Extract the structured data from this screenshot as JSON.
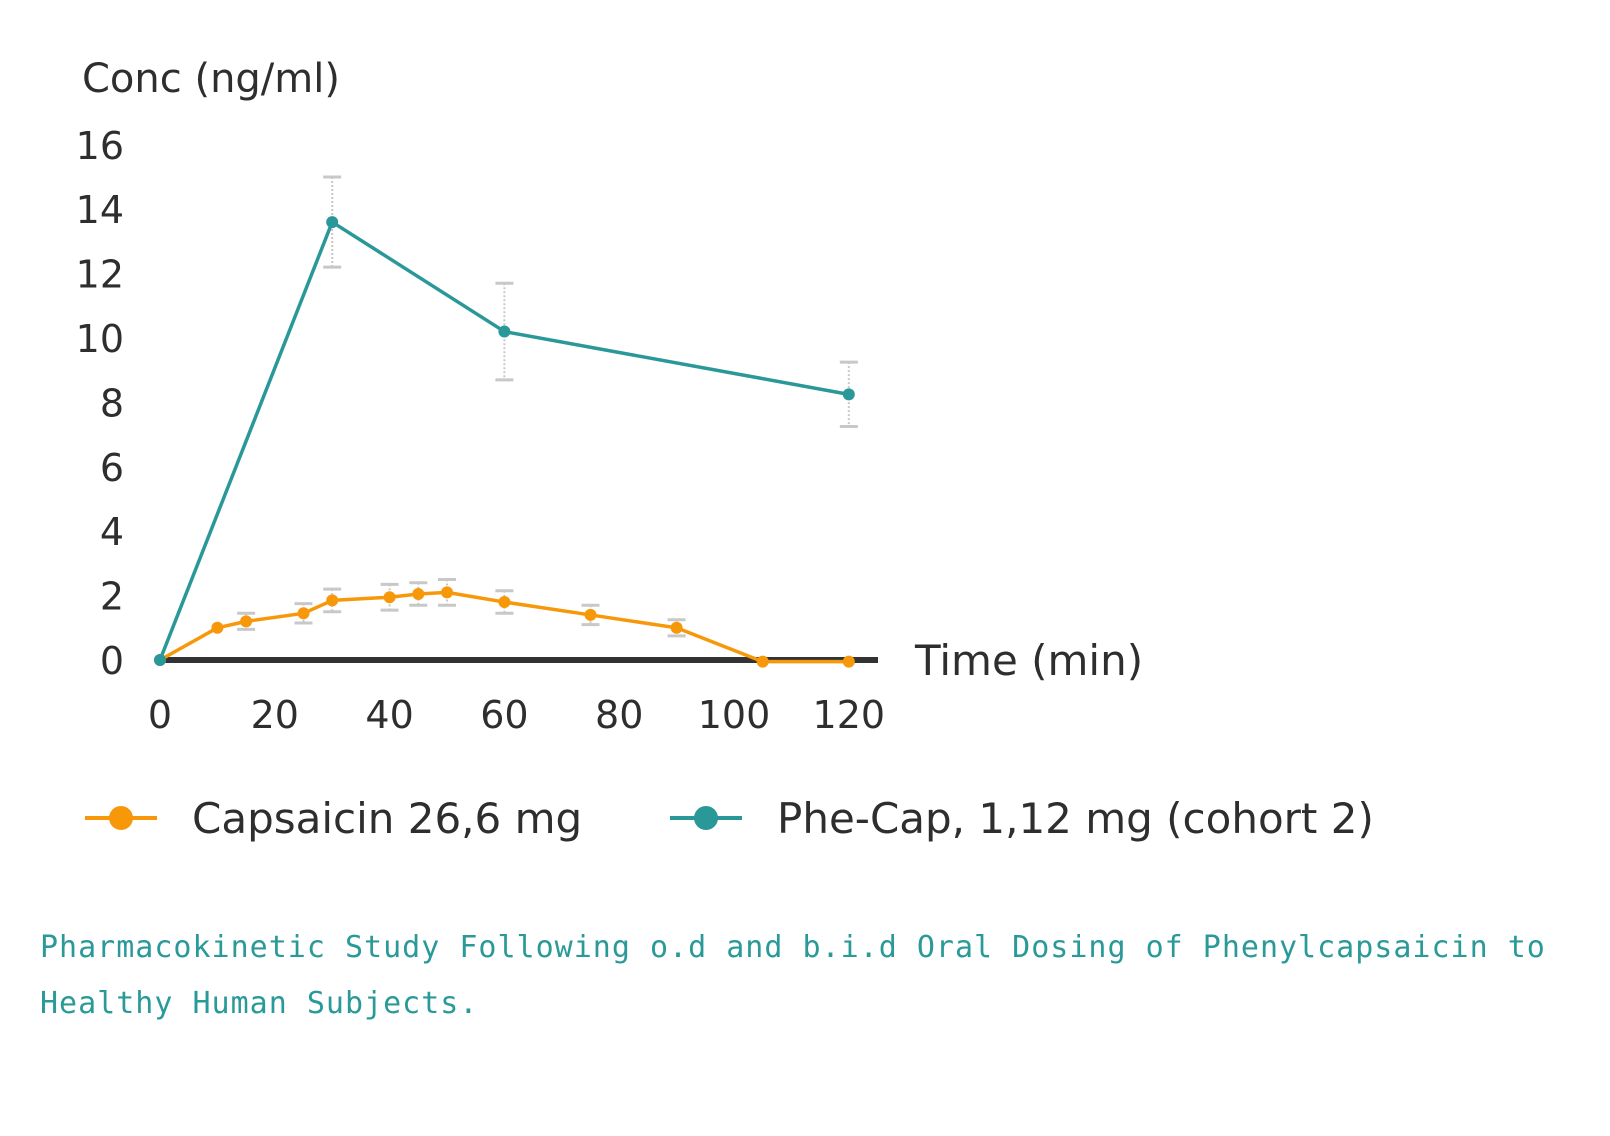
{
  "colors": {
    "capsaicin": "#f7980a",
    "phecap": "#2a9898",
    "axis": "#333333",
    "errorbar": "#c8c8c8",
    "caption": "#2a9a99"
  },
  "caption": "Pharmacokinetic Study Following o.d and b.i.d Oral Dosing of Phenylcapsaicin to Healthy Human Subjects.",
  "chart_data": {
    "type": "line",
    "title": "",
    "ylabel": "Conc (ng/ml)",
    "xlabel": "Time (min)",
    "xlim": [
      0,
      125
    ],
    "ylim": [
      0,
      16
    ],
    "xticks": [
      0,
      20,
      40,
      60,
      80,
      100,
      120
    ],
    "yticks": [
      0,
      2,
      4,
      6,
      8,
      10,
      12,
      14,
      16
    ],
    "grid": false,
    "legend_position": "bottom",
    "series": [
      {
        "name": "Capsaicin 26,6 mg",
        "color": "#f7980a",
        "points": [
          {
            "x": 0,
            "y": 0,
            "err": 0
          },
          {
            "x": 10,
            "y": 1.0,
            "err": 0
          },
          {
            "x": 15,
            "y": 1.2,
            "err": 0.25
          },
          {
            "x": 25,
            "y": 1.45,
            "err": 0.3
          },
          {
            "x": 30,
            "y": 1.85,
            "err": 0.35
          },
          {
            "x": 40,
            "y": 1.95,
            "err": 0.4
          },
          {
            "x": 45,
            "y": 2.05,
            "err": 0.35
          },
          {
            "x": 50,
            "y": 2.1,
            "err": 0.4
          },
          {
            "x": 60,
            "y": 1.8,
            "err": 0.35
          },
          {
            "x": 75,
            "y": 1.4,
            "err": 0.3
          },
          {
            "x": 90,
            "y": 1.0,
            "err": 0.25
          },
          {
            "x": 105,
            "y": -0.05,
            "err": 0
          },
          {
            "x": 120,
            "y": -0.05,
            "err": 0
          }
        ]
      },
      {
        "name": "Phe-Cap, 1,12 mg (cohort 2)",
        "color": "#2a9898",
        "points": [
          {
            "x": 0,
            "y": 0,
            "err": 0
          },
          {
            "x": 30,
            "y": 13.6,
            "err": 1.4
          },
          {
            "x": 60,
            "y": 10.2,
            "err": 1.5
          },
          {
            "x": 120,
            "y": 8.25,
            "err": 1.0
          }
        ]
      }
    ]
  }
}
